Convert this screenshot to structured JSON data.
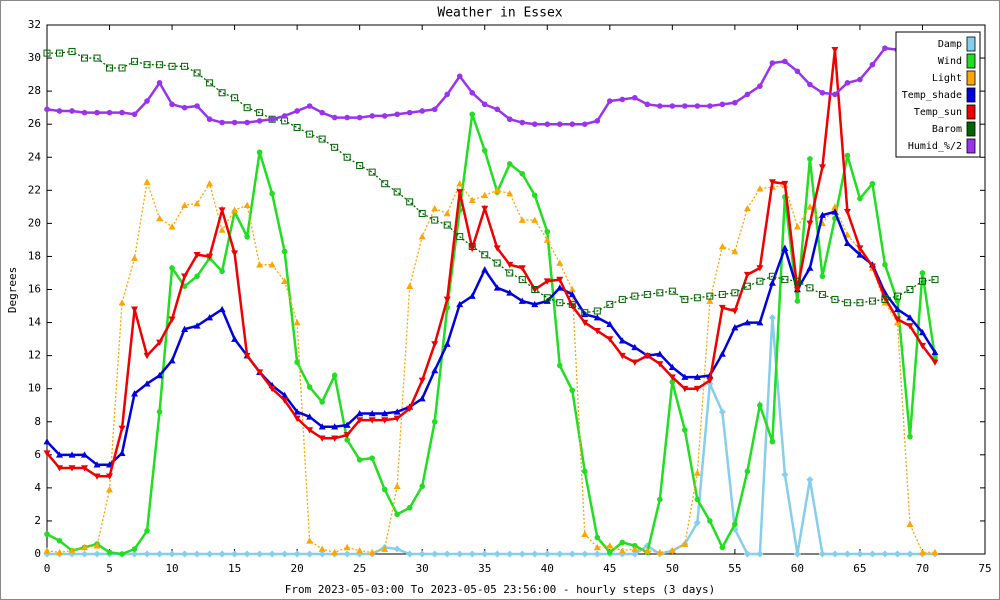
{
  "chart_data": {
    "type": "line",
    "title": "Weather in Essex",
    "ylabel": "Degrees",
    "xlabel": "From 2023-05-03:00 To 2023-05-05 23:56:00 - hourly steps (3 days)",
    "x": [
      0,
      1,
      2,
      3,
      4,
      5,
      6,
      7,
      8,
      9,
      10,
      11,
      12,
      13,
      14,
      15,
      16,
      17,
      18,
      19,
      20,
      21,
      22,
      23,
      24,
      25,
      26,
      27,
      28,
      29,
      30,
      31,
      32,
      33,
      34,
      35,
      36,
      37,
      38,
      39,
      40,
      41,
      42,
      43,
      44,
      45,
      46,
      47,
      48,
      49,
      50,
      51,
      52,
      53,
      54,
      55,
      56,
      57,
      58,
      59,
      60,
      61,
      62,
      63,
      64,
      65,
      66,
      67,
      68,
      69,
      70,
      71
    ],
    "xlim": [
      0,
      75
    ],
    "xticks": [
      0,
      5,
      10,
      15,
      20,
      25,
      30,
      35,
      40,
      45,
      50,
      55,
      60,
      65,
      70,
      75
    ],
    "ylim": [
      0,
      32
    ],
    "yticks": [
      0,
      2,
      4,
      6,
      8,
      10,
      12,
      14,
      16,
      18,
      20,
      22,
      24,
      26,
      28,
      30,
      32
    ],
    "series": [
      {
        "name": "Damp",
        "color": "#87ceeb",
        "marker": "diamond",
        "dash": false,
        "values": [
          0,
          0,
          0,
          0,
          0,
          0,
          0,
          0,
          0,
          0,
          0,
          0,
          0,
          0,
          0,
          0,
          0,
          0,
          0,
          0,
          0,
          0,
          0,
          0,
          0,
          0,
          0,
          0.4,
          0.3,
          0,
          0,
          0,
          0,
          0,
          0,
          0,
          0,
          0,
          0,
          0,
          0,
          0,
          0,
          0,
          0,
          0,
          0,
          0,
          0.5,
          0,
          0.2,
          0.6,
          1.9,
          10.3,
          8.6,
          1.5,
          0,
          0,
          14.3,
          4.8,
          0,
          4.5,
          0,
          0,
          0,
          0,
          0,
          0,
          0,
          0,
          0,
          0
        ]
      },
      {
        "name": "Wind",
        "color": "#22dd22",
        "marker": "circle",
        "dash": false,
        "values": [
          1.2,
          0.8,
          0.2,
          0.4,
          0.6,
          0.1,
          0,
          0.3,
          1.4,
          8.6,
          17.3,
          16.2,
          16.8,
          17.9,
          17.1,
          20.7,
          19.2,
          24.3,
          21.8,
          18.3,
          11.6,
          10.1,
          9.2,
          10.8,
          6.9,
          5.7,
          5.8,
          3.9,
          2.4,
          2.8,
          4.1,
          8,
          14.9,
          20.8,
          26.6,
          24.4,
          21.9,
          23.6,
          23,
          21.7,
          19.5,
          11.4,
          9.9,
          5,
          1,
          0.1,
          0.7,
          0.5,
          0.1,
          3.3,
          10.4,
          7.5,
          3.3,
          2,
          0.4,
          1.8,
          5,
          9,
          6.8,
          21.6,
          15.3,
          23.9,
          16.8,
          20.3,
          24.1,
          21.5,
          22.4,
          17.5,
          15.3,
          7.1,
          17,
          11.9
        ]
      },
      {
        "name": "Light",
        "color": "#ffa500",
        "marker": "triangle-up",
        "dash": true,
        "values": [
          0.2,
          0.1,
          0.2,
          0.4,
          0.5,
          3.9,
          15.2,
          17.9,
          22.5,
          20.3,
          19.8,
          21.1,
          21.2,
          22.4,
          19.6,
          20.8,
          21.1,
          17.5,
          17.5,
          16.5,
          14,
          0.8,
          0.3,
          0.1,
          0.4,
          0.2,
          0.1,
          0.3,
          4.1,
          16.2,
          19.2,
          20.9,
          20.6,
          22.4,
          21.4,
          21.7,
          22,
          21.8,
          20.2,
          20.2,
          19,
          17.6,
          16,
          1.2,
          0.4,
          0.5,
          0.2,
          0.3,
          0.2,
          0.1,
          0.2,
          0.6,
          4.9,
          15.3,
          18.6,
          18.3,
          20.9,
          22.1,
          22.2,
          22.3,
          19.8,
          21,
          20,
          21,
          19.3,
          18.4,
          17.3,
          15.2,
          14,
          1.8,
          0.1,
          0.1
        ]
      },
      {
        "name": "Temp_shade",
        "color": "#0000dd",
        "marker": "triangle-up",
        "dash": false,
        "values": [
          6.8,
          6,
          6,
          6,
          5.4,
          5.4,
          6.1,
          9.7,
          10.3,
          10.8,
          11.7,
          13.6,
          13.8,
          14.3,
          14.8,
          13,
          12,
          11,
          10.2,
          9.6,
          8.6,
          8.3,
          7.7,
          7.7,
          7.8,
          8.5,
          8.5,
          8.5,
          8.6,
          8.9,
          9.4,
          11.1,
          12.7,
          15.1,
          15.6,
          17.2,
          16.1,
          15.8,
          15.3,
          15.1,
          15.3,
          16.1,
          15.7,
          14.5,
          14.3,
          13.9,
          12.9,
          12.5,
          12,
          12.1,
          11.3,
          10.7,
          10.7,
          10.8,
          12.1,
          13.7,
          14,
          14,
          16.4,
          18.5,
          16,
          17.3,
          20.5,
          20.7,
          18.8,
          18.1,
          17.5,
          15.8,
          14.8,
          14.3,
          13.4,
          12.2
        ]
      },
      {
        "name": "Temp_sun",
        "color": "#ee0000",
        "marker": "triangle-down",
        "dash": false,
        "values": [
          6.1,
          5.2,
          5.2,
          5.2,
          4.7,
          4.7,
          7.6,
          14.8,
          12,
          12.8,
          14.2,
          16.8,
          18.1,
          18,
          20.8,
          18.2,
          12,
          11,
          10,
          9.3,
          8.2,
          7.5,
          7,
          7,
          7.2,
          8.1,
          8.1,
          8.1,
          8.2,
          8.8,
          10.5,
          12.7,
          15.4,
          21.9,
          18.5,
          20.9,
          18.5,
          17.5,
          17.3,
          16,
          16.5,
          16.6,
          15,
          14,
          13.5,
          13,
          12,
          11.6,
          12,
          11.5,
          10.7,
          10,
          10,
          10.5,
          14.9,
          14.7,
          16.9,
          17.3,
          22.5,
          22.4,
          16,
          20,
          23.4,
          30.5,
          20.7,
          18.5,
          17.4,
          15.5,
          14.2,
          13.8,
          12.6,
          11.6
        ]
      },
      {
        "name": "Barom",
        "color": "#006400",
        "marker": "square",
        "dash": true,
        "values": [
          30.3,
          30.3,
          30.4,
          30,
          30,
          29.4,
          29.4,
          29.8,
          29.6,
          29.6,
          29.5,
          29.5,
          29.1,
          28.5,
          27.9,
          27.6,
          27,
          26.7,
          26.3,
          26.2,
          25.8,
          25.4,
          25.1,
          24.6,
          24,
          23.5,
          23.1,
          22.4,
          21.9,
          21.3,
          20.6,
          20.2,
          19.9,
          19.2,
          18.6,
          18.1,
          17.6,
          17,
          16.6,
          16,
          15.5,
          15.2,
          15.1,
          14.6,
          14.7,
          15.1,
          15.4,
          15.6,
          15.7,
          15.8,
          15.9,
          15.4,
          15.5,
          15.6,
          15.7,
          15.8,
          16.2,
          16.5,
          16.8,
          16.6,
          16.5,
          16.1,
          15.7,
          15.4,
          15.2,
          15.2,
          15.3,
          15.4,
          15.6,
          16,
          16.5,
          16.6
        ]
      },
      {
        "name": "Humid_%/2",
        "color": "#9933ee",
        "marker": "circle",
        "dash": false,
        "values": [
          26.9,
          26.8,
          26.8,
          26.7,
          26.7,
          26.7,
          26.7,
          26.6,
          27.4,
          28.5,
          27.2,
          27,
          27.1,
          26.3,
          26.1,
          26.1,
          26.1,
          26.2,
          26.3,
          26.5,
          26.8,
          27.1,
          26.7,
          26.4,
          26.4,
          26.4,
          26.5,
          26.5,
          26.6,
          26.7,
          26.8,
          26.9,
          27.8,
          28.9,
          27.9,
          27.2,
          26.9,
          26.3,
          26.1,
          26,
          26,
          26,
          26,
          26,
          26.2,
          27.4,
          27.5,
          27.6,
          27.2,
          27.1,
          27.1,
          27.1,
          27.1,
          27.1,
          27.2,
          27.3,
          27.8,
          28.3,
          29.7,
          29.8,
          29.2,
          28.4,
          27.9,
          27.8,
          28.5,
          28.7,
          29.6,
          30.6,
          30.5,
          30.5,
          30.5,
          30.5
        ]
      }
    ],
    "legend": "top-right",
    "grid": false
  }
}
